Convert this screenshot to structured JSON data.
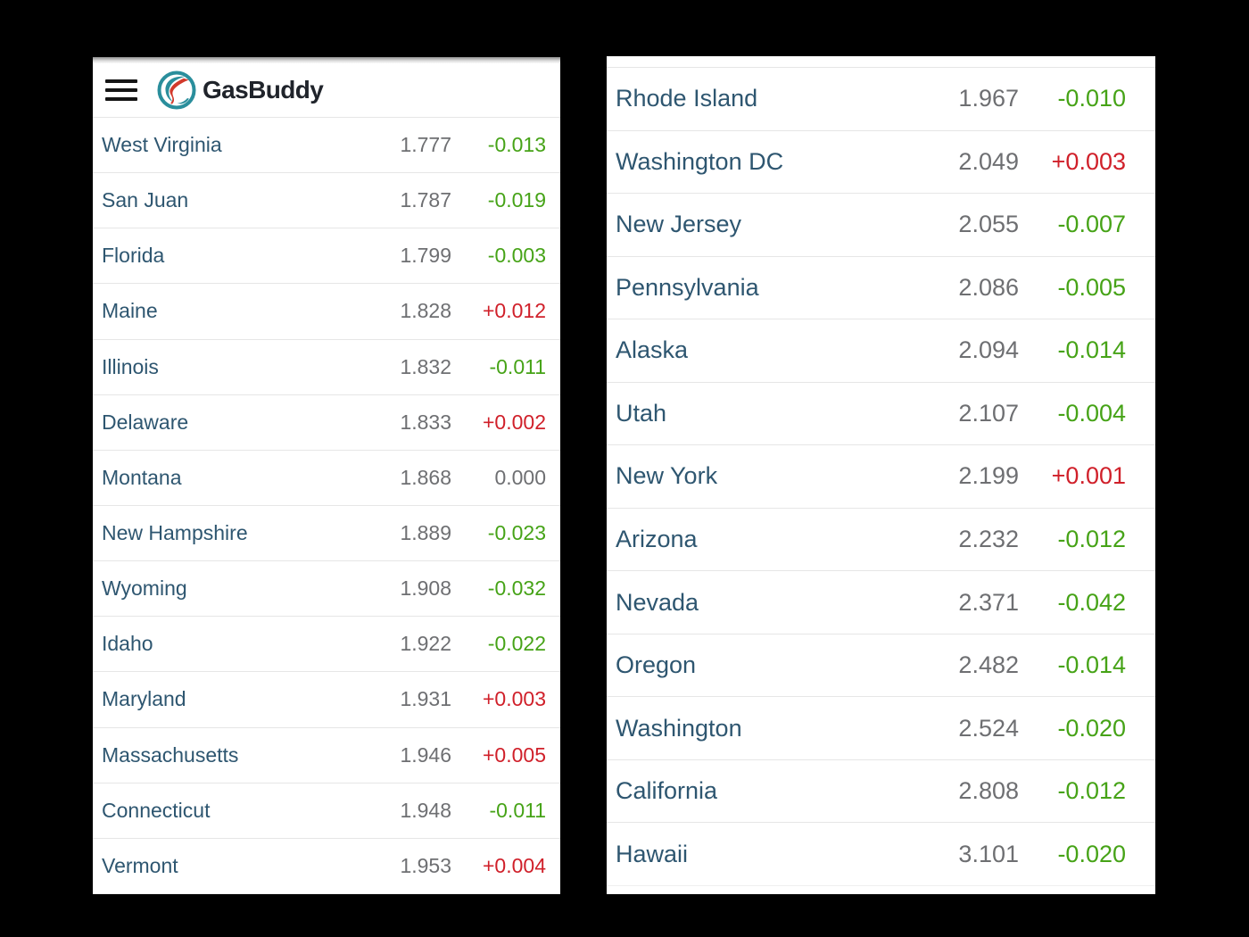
{
  "app": {
    "name": "GasBuddy",
    "menu_icon": "hamburger-icon",
    "logo_icon": "gasbuddy-logo-icon"
  },
  "colors": {
    "bg": "#000000",
    "panel": "#ffffff",
    "divider": "#e6e6e6",
    "state": "#2e5670",
    "price": "#6e6f72",
    "down": "#46a317",
    "up": "#d0202a",
    "neutral": "#6e6f72",
    "brand_teal": "#2a8e9c",
    "brand_red": "#d2392b"
  },
  "left_list": [
    {
      "state": "West Virginia",
      "price": "1.777",
      "change": "-0.013",
      "direction": "down"
    },
    {
      "state": "San Juan",
      "price": "1.787",
      "change": "-0.019",
      "direction": "down"
    },
    {
      "state": "Florida",
      "price": "1.799",
      "change": "-0.003",
      "direction": "down"
    },
    {
      "state": "Maine",
      "price": "1.828",
      "change": "+0.012",
      "direction": "up"
    },
    {
      "state": "Illinois",
      "price": "1.832",
      "change": "-0.011",
      "direction": "down"
    },
    {
      "state": "Delaware",
      "price": "1.833",
      "change": "+0.002",
      "direction": "up"
    },
    {
      "state": "Montana",
      "price": "1.868",
      "change": "0.000",
      "direction": "neutral"
    },
    {
      "state": "New Hampshire",
      "price": "1.889",
      "change": "-0.023",
      "direction": "down"
    },
    {
      "state": "Wyoming",
      "price": "1.908",
      "change": "-0.032",
      "direction": "down"
    },
    {
      "state": "Idaho",
      "price": "1.922",
      "change": "-0.022",
      "direction": "down"
    },
    {
      "state": "Maryland",
      "price": "1.931",
      "change": "+0.003",
      "direction": "up"
    },
    {
      "state": "Massachusetts",
      "price": "1.946",
      "change": "+0.005",
      "direction": "up"
    },
    {
      "state": "Connecticut",
      "price": "1.948",
      "change": "-0.011",
      "direction": "down"
    },
    {
      "state": "Vermont",
      "price": "1.953",
      "change": "+0.004",
      "direction": "up"
    }
  ],
  "right_list": [
    {
      "state": "Rhode Island",
      "price": "1.967",
      "change": "-0.010",
      "direction": "down"
    },
    {
      "state": "Washington DC",
      "price": "2.049",
      "change": "+0.003",
      "direction": "up"
    },
    {
      "state": "New Jersey",
      "price": "2.055",
      "change": "-0.007",
      "direction": "down"
    },
    {
      "state": "Pennsylvania",
      "price": "2.086",
      "change": "-0.005",
      "direction": "down"
    },
    {
      "state": "Alaska",
      "price": "2.094",
      "change": "-0.014",
      "direction": "down"
    },
    {
      "state": "Utah",
      "price": "2.107",
      "change": "-0.004",
      "direction": "down"
    },
    {
      "state": "New York",
      "price": "2.199",
      "change": "+0.001",
      "direction": "up"
    },
    {
      "state": "Arizona",
      "price": "2.232",
      "change": "-0.012",
      "direction": "down"
    },
    {
      "state": "Nevada",
      "price": "2.371",
      "change": "-0.042",
      "direction": "down"
    },
    {
      "state": "Oregon",
      "price": "2.482",
      "change": "-0.014",
      "direction": "down"
    },
    {
      "state": "Washington",
      "price": "2.524",
      "change": "-0.020",
      "direction": "down"
    },
    {
      "state": "California",
      "price": "2.808",
      "change": "-0.012",
      "direction": "down"
    },
    {
      "state": "Hawaii",
      "price": "3.101",
      "change": "-0.020",
      "direction": "down"
    }
  ]
}
